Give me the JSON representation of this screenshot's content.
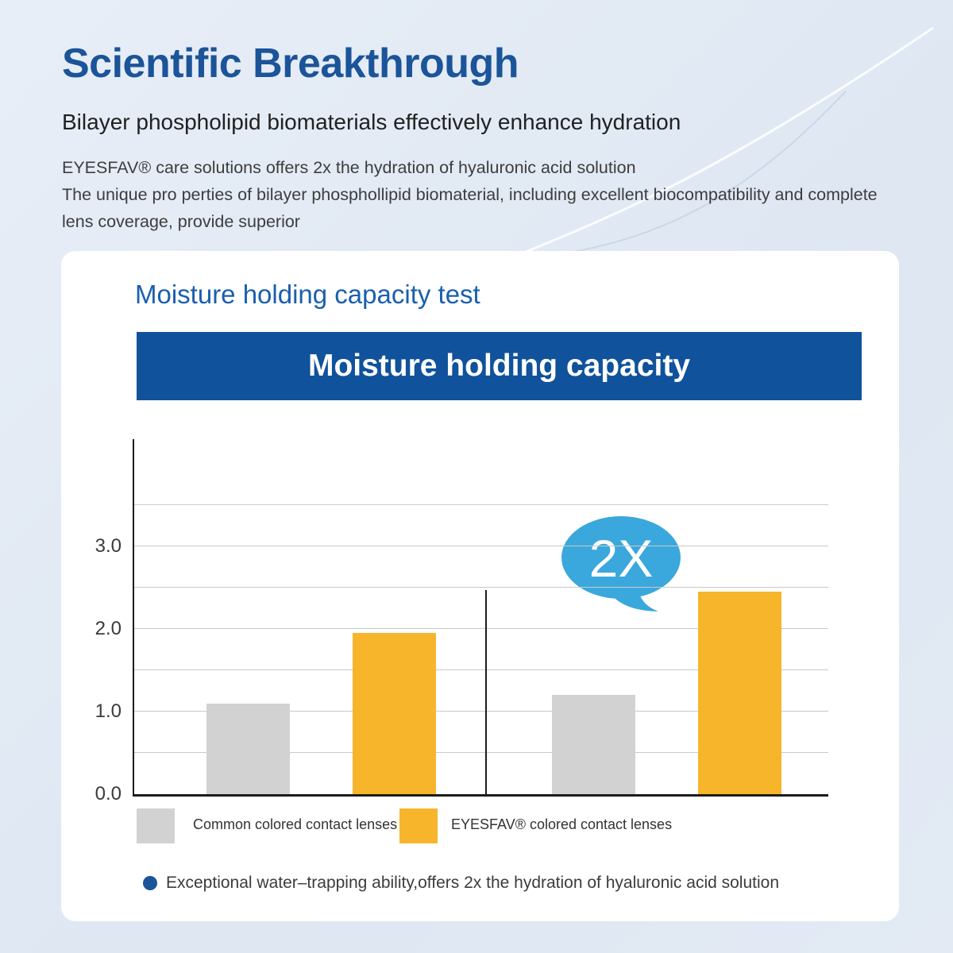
{
  "header": {
    "title": "Scientific Breakthrough",
    "subtitle": "Bilayer phospholipid biomaterials effectively enhance hydration",
    "body_lines": [
      "EYESFAV® care solutions offers 2x the hydration of hyaluronic acid solution",
      "The unique pro perties of bilayer phosphollipid biomaterial, including excellent biocompatibility and complete",
      "lens coverage, provide superior"
    ]
  },
  "card": {
    "heading": "Moisture holding capacity test",
    "banner_title": "Moisture holding capacity",
    "bullet_text": "Exceptional water–trapping ability,offers 2x the hydration of hyaluronic acid solution"
  },
  "chart_data": {
    "type": "bar",
    "title": "Moisture holding capacity",
    "categories": [
      "",
      ""
    ],
    "series": [
      {
        "name": "Common colored contact  lenses",
        "color": "#d2d2d2",
        "values": [
          1.1,
          1.2
        ]
      },
      {
        "name": "EYESFAV® colored contact lenses",
        "color": "#f7b52c",
        "values": [
          1.95,
          2.45
        ]
      }
    ],
    "ylim": [
      0,
      4.3
    ],
    "yticks": [
      "0.0",
      "1.0",
      "2.0",
      "3.0"
    ],
    "gridlines": [
      0.5,
      1.0,
      1.5,
      2.0,
      2.5,
      3.0,
      3.5
    ],
    "grid": "horizontal",
    "legend_position": "bottom",
    "divider_height": 2.47,
    "annotation": {
      "label": "2X",
      "color": "#3aa8dc",
      "text_color": "#ffffff"
    }
  },
  "colors": {
    "title": "#1b5499",
    "heading": "#1a5fae",
    "banner_bg": "#10529b",
    "banner_text": "#ffffff",
    "bullet_dot": "#1b5499"
  }
}
